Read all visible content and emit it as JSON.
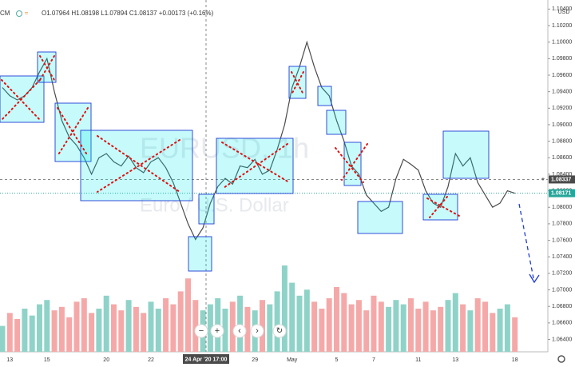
{
  "header": {
    "symbol_fragment": "CM",
    "ohlc": "O1.07964 H1.08198 L1.07894 C1.08137 +0.00173 (+0.16%)"
  },
  "chart_data": {
    "type": "line",
    "title": "EURUSD, 1h",
    "subtitle": "Euro / U.S. Dollar",
    "currency": "USD",
    "color": "#4a4a4a",
    "categories": [
      null,
      "13",
      null,
      null,
      null,
      null,
      "15",
      null,
      null,
      null,
      null,
      null,
      null,
      null,
      "20",
      null,
      null,
      null,
      null,
      null,
      "22",
      null,
      null,
      null,
      null,
      null,
      null,
      "24 Apr '20  17:00",
      null,
      null,
      null,
      null,
      null,
      null,
      "29",
      null,
      null,
      null,
      null,
      "May",
      null,
      null,
      null,
      null,
      null,
      "5",
      null,
      null,
      null,
      null,
      "7",
      null,
      null,
      null,
      null,
      null,
      "11",
      null,
      null,
      null,
      null,
      "13",
      null,
      null,
      null,
      null,
      null,
      null,
      null,
      "18"
    ],
    "values": [
      1.0945,
      1.0935,
      1.093,
      1.0935,
      1.0945,
      1.0964,
      1.098,
      1.094,
      1.0905,
      1.0885,
      1.0875,
      1.086,
      1.084,
      1.086,
      1.0865,
      1.0855,
      1.085,
      1.0862,
      1.0848,
      1.0842,
      1.0855,
      1.086,
      1.0848,
      1.083,
      1.0805,
      1.078,
      1.0761,
      1.0775,
      1.0805,
      1.0825,
      1.0835,
      1.0828,
      1.085,
      1.0848,
      1.0858,
      1.084,
      1.0845,
      1.087,
      1.09,
      1.0945,
      1.097,
      1.1,
      1.097,
      1.0945,
      1.0935,
      1.0905,
      1.088,
      1.085,
      1.084,
      1.0815,
      1.0805,
      1.0795,
      1.08,
      1.0835,
      1.0858,
      1.0852,
      1.0845,
      1.082,
      1.0805,
      1.08,
      1.0825,
      1.0865,
      1.085,
      1.086,
      1.083,
      1.0815,
      1.08,
      1.0805,
      1.082,
      1.0817
    ],
    "volume": [
      30,
      45,
      38,
      50,
      42,
      55,
      60,
      48,
      52,
      40,
      58,
      62,
      45,
      50,
      65,
      55,
      48,
      60,
      52,
      45,
      58,
      50,
      62,
      55,
      70,
      85,
      60,
      48,
      55,
      62,
      50,
      58,
      65,
      52,
      48,
      60,
      55,
      70,
      100,
      80,
      65,
      72,
      58,
      50,
      62,
      75,
      68,
      55,
      60,
      48,
      65,
      58,
      52,
      60,
      55,
      62,
      50,
      58,
      48,
      52,
      60,
      68,
      55,
      48,
      62,
      58,
      45,
      50,
      55,
      40
    ],
    "up_color": "#8fd3c8",
    "down_color": "#f4a9a8",
    "ylim": [
      1.0625,
      1.1051
    ],
    "yticks": [
      {
        "value": 1.064,
        "label": "1.06400"
      },
      {
        "value": 1.066,
        "label": "1.06600"
      },
      {
        "value": 1.068,
        "label": "1.06800"
      },
      {
        "value": 1.07,
        "label": "1.07000"
      },
      {
        "value": 1.072,
        "label": "1.07200"
      },
      {
        "value": 1.074,
        "label": "1.07400"
      },
      {
        "value": 1.076,
        "label": "1.07600"
      },
      {
        "value": 1.078,
        "label": "1.07800"
      },
      {
        "value": 1.08,
        "label": "1.08000"
      },
      {
        "value": 1.082,
        "label": "1.08200"
      },
      {
        "value": 1.084,
        "label": "1.08400"
      },
      {
        "value": 1.086,
        "label": "1.08600"
      },
      {
        "value": 1.088,
        "label": "1.08800"
      },
      {
        "value": 1.09,
        "label": "1.09000"
      },
      {
        "value": 1.092,
        "label": "1.09200"
      },
      {
        "value": 1.094,
        "label": "1.09400"
      },
      {
        "value": 1.096,
        "label": "1.09600"
      },
      {
        "value": 1.098,
        "label": "1.09800"
      },
      {
        "value": 1.1,
        "label": "1.10000"
      },
      {
        "value": 1.102,
        "label": "1.10200"
      },
      {
        "value": 1.104,
        "label": "1.10400"
      }
    ],
    "crosshair_price": {
      "value": 1.08337,
      "label": "1.08337"
    },
    "last_price": {
      "value": 1.08171,
      "label": "1.08171"
    },
    "last_color": "#26a69a"
  }
}
